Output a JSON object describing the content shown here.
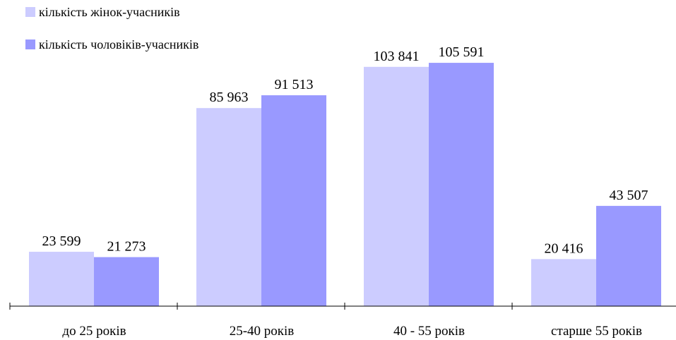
{
  "chart_data": {
    "type": "bar",
    "categories": [
      "до 25 років",
      "25-40 років",
      "40 - 55 років",
      "старше 55 років"
    ],
    "series": [
      {
        "name": "кількість жінок-учасників",
        "color": "#ccccff",
        "values": [
          23599,
          85963,
          103841,
          20416
        ],
        "labels": [
          "23 599",
          "85 963",
          "103 841",
          "20 416"
        ]
      },
      {
        "name": "кількість чоловіків-учасників",
        "color": "#9999ff",
        "values": [
          21273,
          91513,
          105591,
          43507
        ],
        "labels": [
          "21 273",
          "91 513",
          "105 591",
          "43 507"
        ]
      }
    ],
    "ylim": [
      0,
      120000
    ],
    "grid": false,
    "legend_position": "top-left"
  }
}
